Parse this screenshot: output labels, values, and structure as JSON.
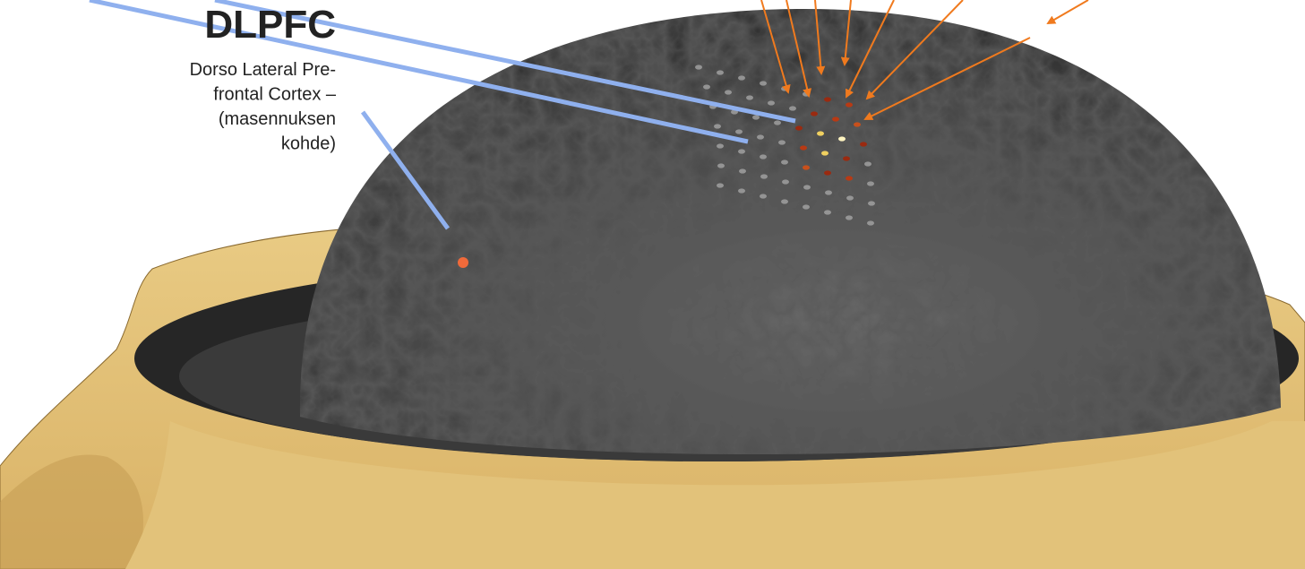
{
  "label": {
    "title": "DLPFC",
    "description": [
      "Dorso Lateral Pre-",
      "frontal Cortex –",
      "(masennuksen",
      "kohde)"
    ]
  }
}
